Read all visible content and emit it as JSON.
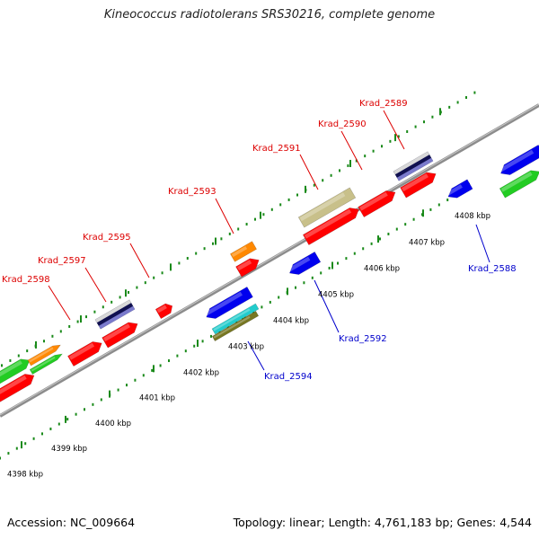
{
  "title": "Kineococcus radiotolerans SRS30216, complete genome",
  "footer": {
    "accession": "Accession: NC_009664",
    "summary": "Topology: linear; Length: 4,761,183 bp; Genes: 4,544"
  },
  "colors": {
    "red": "#ff0000",
    "blue": "#0000ee",
    "green": "#22cc22",
    "orange": "#ff8800",
    "khaki": "#c8c08a",
    "navy": "#101050",
    "cyan": "#22cccc",
    "olive": "#777722",
    "backbone": "#8c8c8c",
    "tick": "#1a8a1a",
    "label_upper": "#dd0000",
    "label_lower": "#0000cc"
  },
  "scale_labels": [
    "4398 kbp",
    "4399 kbp",
    "4400 kbp",
    "4401 kbp",
    "4402 kbp",
    "4403 kbp",
    "4404 kbp",
    "4405 kbp",
    "4406 kbp",
    "4407 kbp",
    "4408 kbp"
  ],
  "upper_gene_labels": [
    "Krad_2598",
    "Krad_2597",
    "Krad_2595",
    "Krad_2593",
    "Krad_2591",
    "Krad_2590",
    "Krad_2589"
  ],
  "lower_gene_labels": [
    "Krad_2594",
    "Krad_2592",
    "Krad_2588"
  ]
}
